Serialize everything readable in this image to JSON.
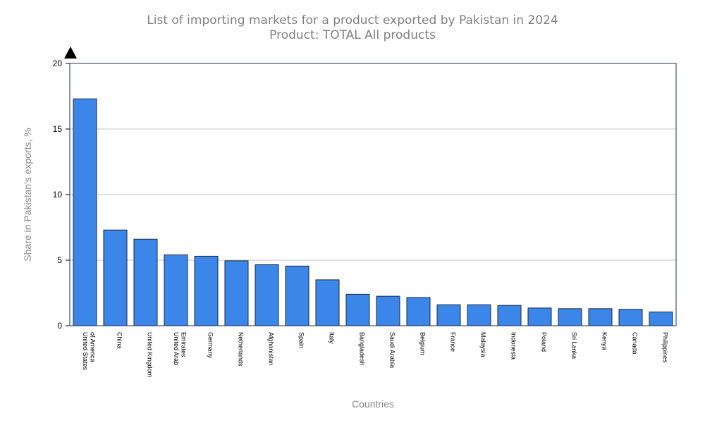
{
  "chart_data": {
    "type": "bar",
    "title": "List of importing markets for a product exported by Pakistan in 2024",
    "subtitle": "Product: TOTAL All products",
    "xlabel": "Countries",
    "ylabel": "Share in Pakistan's exports, %",
    "ylim": [
      0,
      20
    ],
    "yticks": [
      0,
      5,
      10,
      15,
      20
    ],
    "grid": true,
    "legend": "none",
    "bar_color": "#3b86e8",
    "categories": [
      [
        "United States",
        "of America"
      ],
      [
        "China"
      ],
      [
        "United Kingdom"
      ],
      [
        "United Arab",
        "Emirates"
      ],
      [
        "Germany"
      ],
      [
        "Netherlands"
      ],
      [
        "Afghanistan"
      ],
      [
        "Spain"
      ],
      [
        "Italy"
      ],
      [
        "Bangladesh"
      ],
      [
        "Saudi Arabia"
      ],
      [
        "Belgium"
      ],
      [
        "France"
      ],
      [
        "Malaysia"
      ],
      [
        "Indonesia"
      ],
      [
        "Poland"
      ],
      [
        "Sri Lanka"
      ],
      [
        "Kenya"
      ],
      [
        "Canada"
      ],
      [
        "Philippines"
      ]
    ],
    "values": [
      17.3,
      7.3,
      6.6,
      5.4,
      5.3,
      4.95,
      4.65,
      4.55,
      3.5,
      2.4,
      2.25,
      2.15,
      1.6,
      1.6,
      1.55,
      1.35,
      1.3,
      1.3,
      1.25,
      1.05
    ]
  }
}
